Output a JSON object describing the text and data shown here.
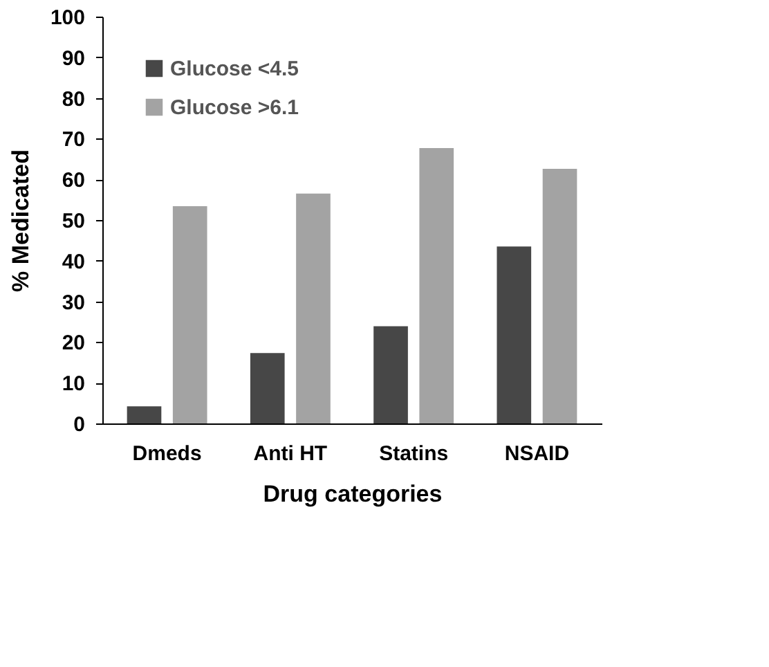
{
  "chart_data": {
    "type": "bar",
    "xlabel": "Drug categories",
    "ylabel": "% Medicated",
    "categories": [
      "Dmeds",
      "Anti HT",
      "Statins",
      "NSAID"
    ],
    "series": [
      {
        "name": "Glucose <4.5",
        "color": "#474747",
        "values": [
          4.2,
          17.3,
          23.9,
          43.5
        ]
      },
      {
        "name": "Glucose >6.1",
        "color": "#a3a3a3",
        "values": [
          53.4,
          56.5,
          67.7,
          62.6
        ]
      }
    ],
    "ylim": [
      0,
      100
    ],
    "yticks": [
      0,
      10,
      20,
      30,
      40,
      50,
      60,
      70,
      80,
      90,
      100
    ],
    "grid": false,
    "legend": "top left"
  }
}
